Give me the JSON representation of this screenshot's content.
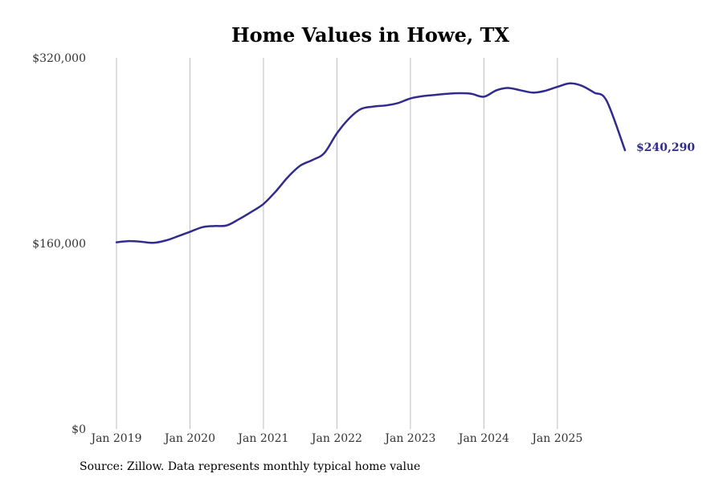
{
  "chart_data": {
    "type": "line",
    "title": "Home Values in Howe, TX",
    "xlabel": "",
    "ylabel": "",
    "ylim": [
      0,
      320000
    ],
    "y_ticks": [
      {
        "value": 0,
        "label": "$0"
      },
      {
        "value": 160000,
        "label": "$160,000"
      },
      {
        "value": 320000,
        "label": "$320,000"
      }
    ],
    "xlim": [
      2019.0,
      2025.92
    ],
    "x_ticks": [
      {
        "value": 2019,
        "label": "Jan 2019"
      },
      {
        "value": 2020,
        "label": "Jan 2020"
      },
      {
        "value": 2021,
        "label": "Jan 2021"
      },
      {
        "value": 2022,
        "label": "Jan 2022"
      },
      {
        "value": 2023,
        "label": "Jan 2023"
      },
      {
        "value": 2024,
        "label": "Jan 2024"
      },
      {
        "value": 2025,
        "label": "Jan 2025"
      }
    ],
    "vertical_grid": true,
    "series": [
      {
        "name": "Typical home value",
        "color": "#312b8c",
        "x": [
          2019.0,
          2019.17,
          2019.33,
          2019.5,
          2019.67,
          2019.83,
          2020.0,
          2020.17,
          2020.33,
          2020.5,
          2020.67,
          2020.83,
          2021.0,
          2021.17,
          2021.33,
          2021.5,
          2021.67,
          2021.83,
          2022.0,
          2022.17,
          2022.33,
          2022.5,
          2022.67,
          2022.83,
          2023.0,
          2023.17,
          2023.33,
          2023.5,
          2023.67,
          2023.83,
          2024.0,
          2024.17,
          2024.33,
          2024.5,
          2024.67,
          2024.83,
          2025.0,
          2025.17,
          2025.33,
          2025.5,
          2025.67,
          2025.92
        ],
        "values": [
          161000,
          162000,
          161500,
          160500,
          162500,
          166000,
          170000,
          174000,
          175000,
          175500,
          181000,
          187000,
          194000,
          205000,
          217000,
          227000,
          232000,
          238000,
          255000,
          268000,
          276000,
          278000,
          279000,
          281000,
          285000,
          287000,
          288000,
          289000,
          289500,
          289000,
          286500,
          292000,
          294000,
          292000,
          290000,
          291500,
          295000,
          298000,
          296000,
          290000,
          283000,
          240290
        ]
      }
    ],
    "end_label": "$240,290",
    "source_note": "Source: Zillow. Data represents monthly typical home value"
  }
}
